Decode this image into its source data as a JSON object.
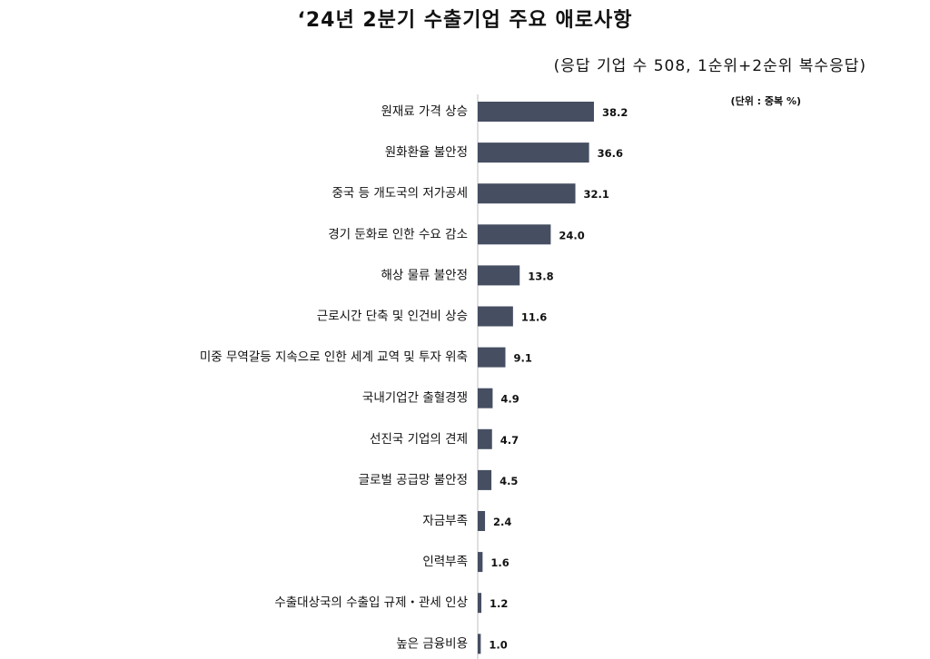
{
  "title": "‘24년 2분기 수출기업 주요 애로사항",
  "subtitle": "(응답 기업 수 508, 1순위+2순위 복수응답)",
  "unit_note": "(단위 : 중복 %)",
  "chart_data": {
    "type": "bar",
    "orientation": "horizontal",
    "title": "‘24년 2분기 수출기업 주요 애로사항",
    "subtitle": "(응답 기업 수 508, 1순위+2순위 복수응답)",
    "unit": "(단위 : 중복 %)",
    "categories": [
      "원재료 가격 상승",
      "원화환율 불안정",
      "중국 등 개도국의 저가공세",
      "경기 둔화로 인한 수요 감소",
      "해상 물류 불안정",
      "근로시간 단축 및 인건비 상승",
      "미중 무역갈등 지속으로 인한 세계 교역 및 투자 위축",
      "국내기업간 출혈경쟁",
      "선진국 기업의 견제",
      "글로벌 공급망 불안정",
      "자금부족",
      "인력부족",
      "수출대상국의 수출입 규제・관세 인상",
      "높은 금융비용"
    ],
    "values": [
      38.2,
      36.6,
      32.1,
      24.0,
      13.8,
      11.6,
      9.1,
      4.9,
      4.7,
      4.5,
      2.4,
      1.6,
      1.2,
      1.0
    ],
    "value_labels": [
      "38.2",
      "36.6",
      "32.1",
      "24.0",
      "13.8",
      "11.6",
      "9.1",
      "4.9",
      "4.7",
      "4.5",
      "2.4",
      "1.6",
      "1.2",
      "1.0"
    ],
    "xlim": [
      0,
      100
    ],
    "bar_color": "#464e62",
    "grid": false,
    "legend": "none"
  }
}
